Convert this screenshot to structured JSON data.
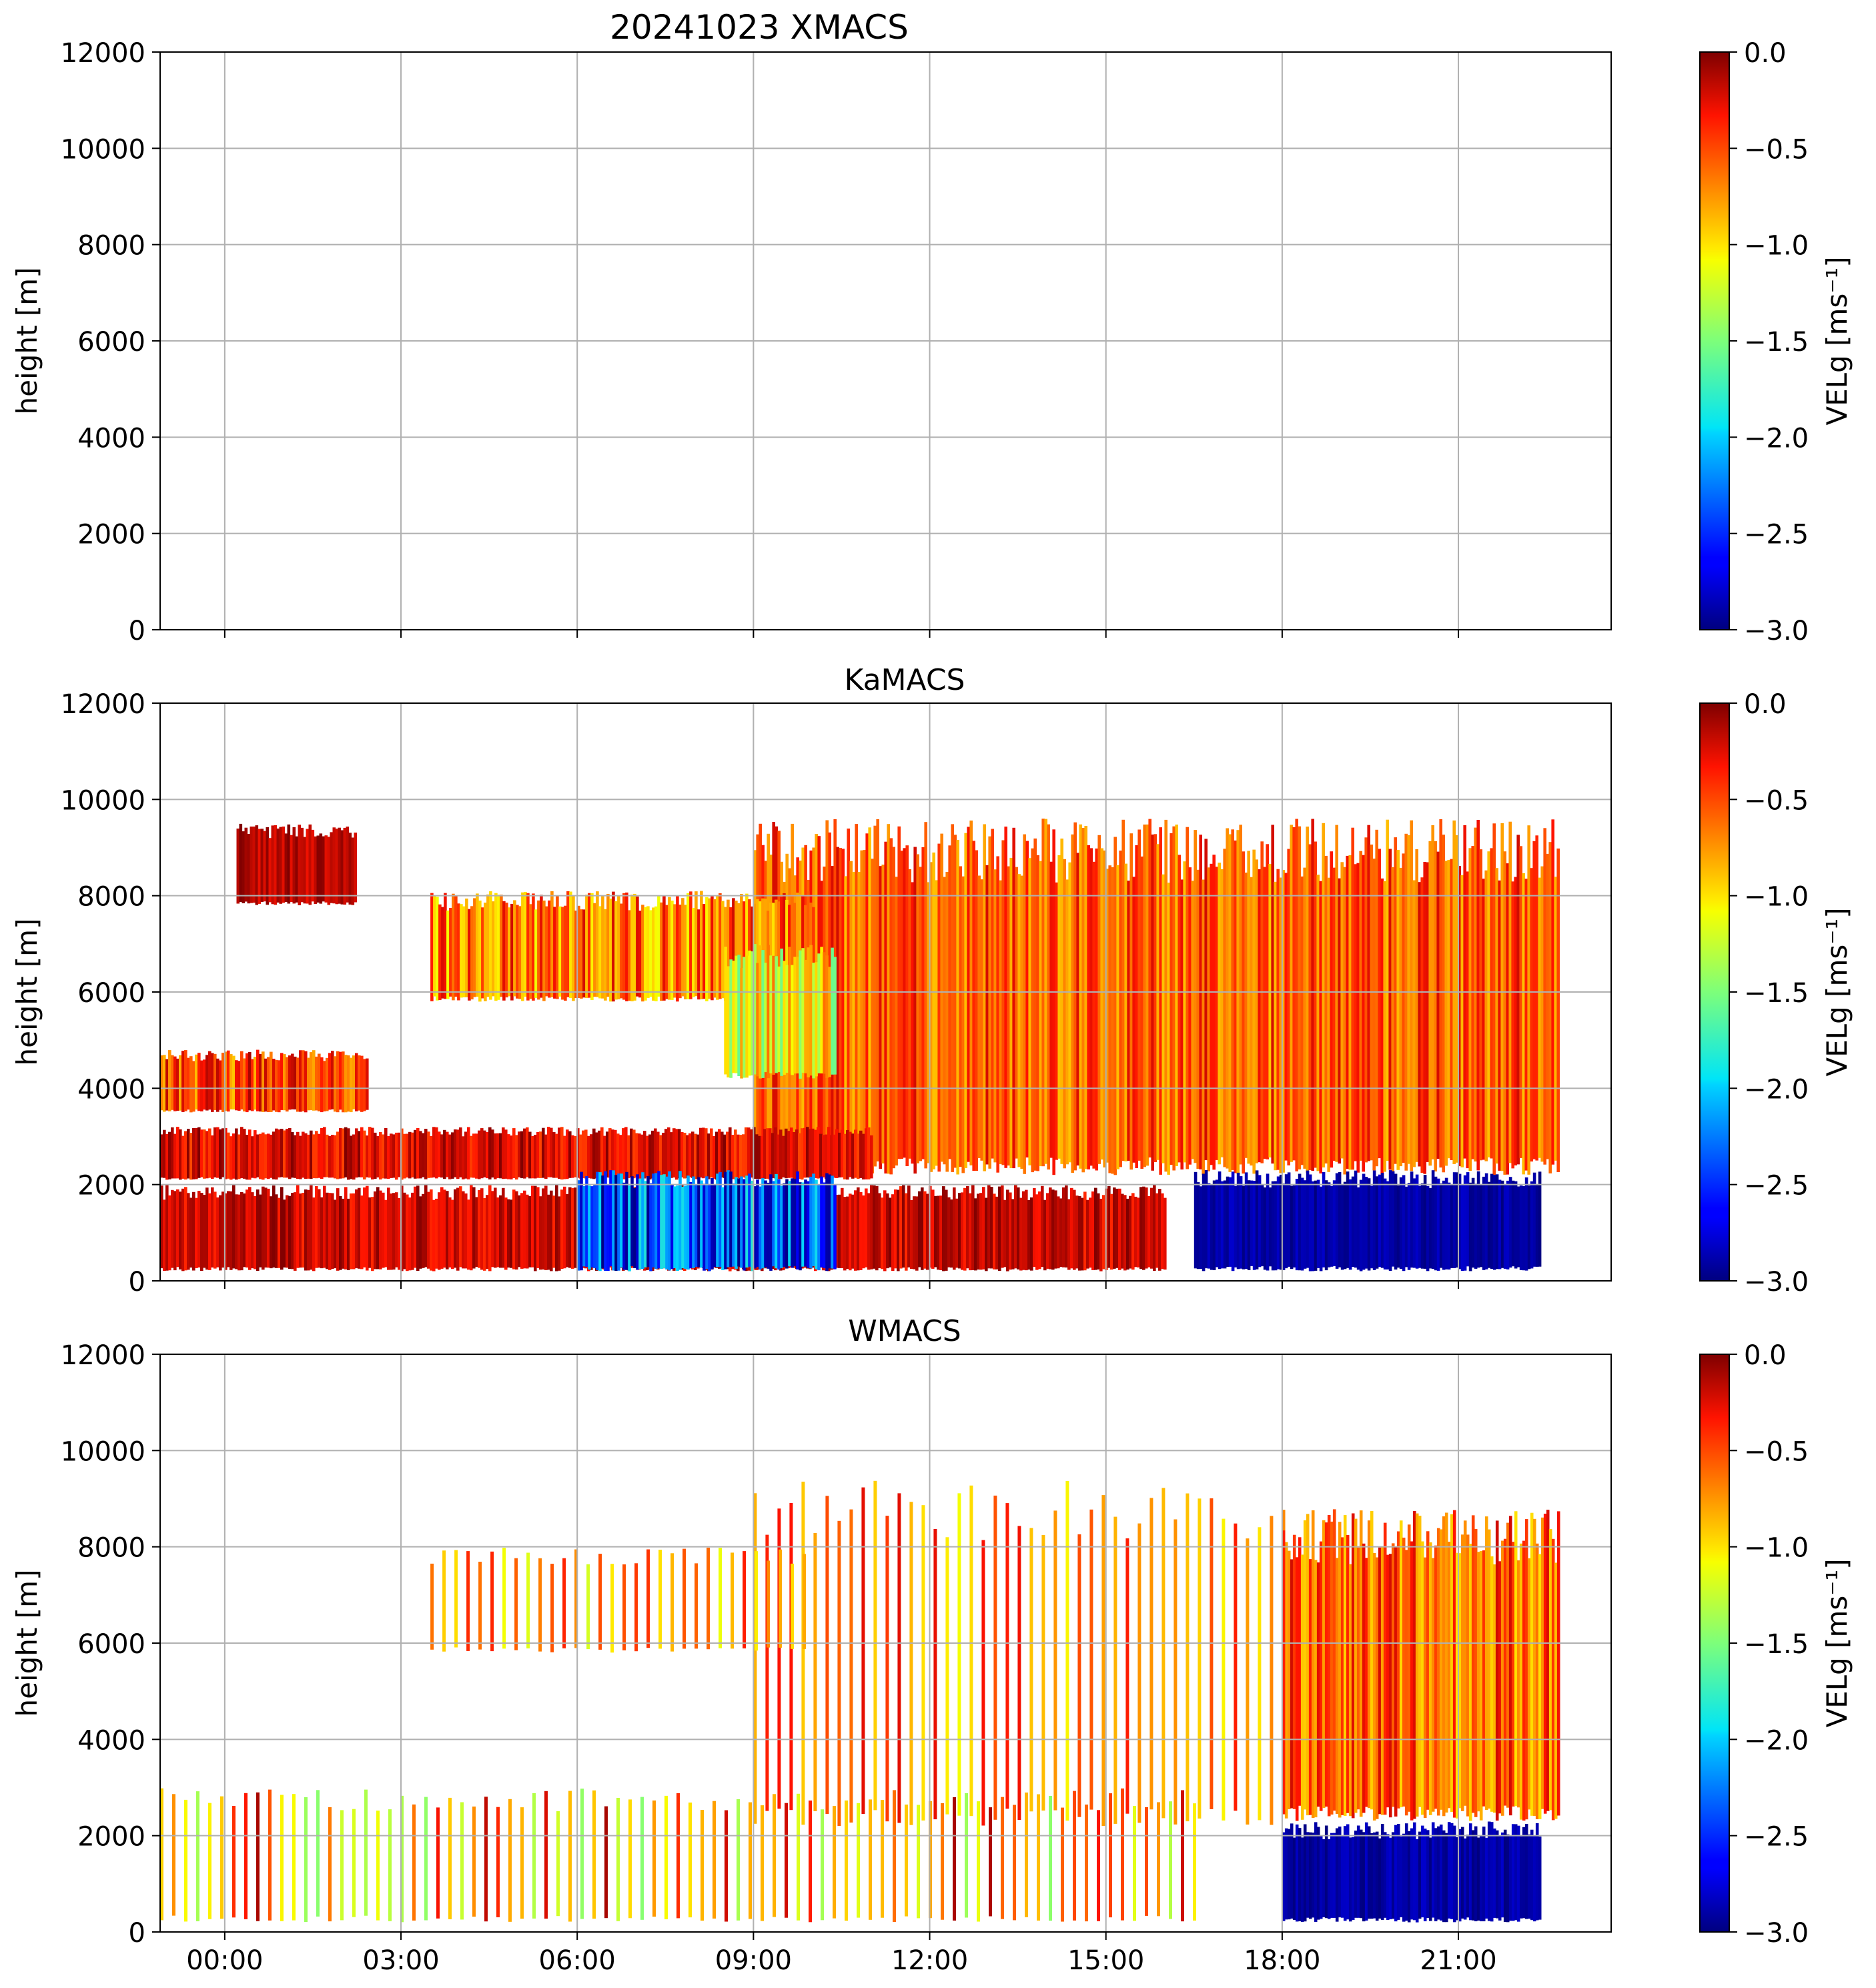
{
  "figure_title": "20241023 XMACS",
  "chart_data": [
    {
      "type": "heatmap",
      "title": "20241023 XMACS",
      "instrument": "XMACS",
      "xlabel": "",
      "ylabel": "height [m]",
      "ylim": [
        0,
        12000
      ],
      "yticks": [
        0,
        2000,
        4000,
        6000,
        8000,
        10000,
        12000
      ],
      "xlim_hours": [
        -1.1,
        23.6
      ],
      "xticks_hours": [
        0,
        3,
        6,
        9,
        12,
        15,
        18,
        21
      ],
      "xtick_labels": [],
      "grid": true,
      "colorbar": {
        "label": "VELg [ms⁻¹]",
        "range": [
          -3.0,
          0.0
        ],
        "ticks": [
          "0.0",
          "−0.5",
          "−1.0",
          "−1.5",
          "−2.0",
          "−2.5",
          "−3.0"
        ]
      },
      "regions": []
    },
    {
      "type": "heatmap",
      "title": "KaMACS",
      "instrument": "KaMACS",
      "xlabel": "",
      "ylabel": "height [m]",
      "ylim": [
        0,
        12000
      ],
      "yticks": [
        0,
        2000,
        4000,
        6000,
        8000,
        10000,
        12000
      ],
      "xlim_hours": [
        -1.1,
        23.6
      ],
      "xticks_hours": [
        0,
        3,
        6,
        9,
        12,
        15,
        18,
        21
      ],
      "xtick_labels": [],
      "grid": true,
      "colorbar": {
        "label": "VELg [ms⁻¹]",
        "range": [
          -3.0,
          0.0
        ],
        "ticks": [
          "0.0",
          "−0.5",
          "−1.0",
          "−1.5",
          "−2.0",
          "−2.5",
          "−3.0"
        ]
      },
      "regions": [
        {
          "t0": 9.0,
          "t1": 22.7,
          "z0": 2200,
          "z1": 9600,
          "v_low": -0.9,
          "v_high": -0.2
        },
        {
          "t0": 3.5,
          "t1": 10.0,
          "z0": 5800,
          "z1": 8100,
          "v_low": -1.1,
          "v_high": -0.2
        },
        {
          "t0": 8.5,
          "t1": 10.4,
          "z0": 4200,
          "z1": 7000,
          "v_low": -1.6,
          "v_high": -0.6
        },
        {
          "t0": -1.1,
          "t1": 2.4,
          "z0": 3500,
          "z1": 4800,
          "v_low": -0.9,
          "v_high": -0.1
        },
        {
          "t0": -1.1,
          "t1": 11.0,
          "z0": 2100,
          "z1": 3200,
          "v_low": -0.5,
          "v_high": 0.0
        },
        {
          "t0": -1.1,
          "t1": 16.0,
          "z0": 200,
          "z1": 2000,
          "v_low": -0.4,
          "v_high": 0.0
        },
        {
          "t0": 6.0,
          "t1": 10.4,
          "z0": 200,
          "z1": 2300,
          "v_low": -3.0,
          "v_high": -1.8
        },
        {
          "t0": 16.5,
          "t1": 22.4,
          "z0": 200,
          "z1": 2300,
          "v_low": -3.0,
          "v_high": -2.8
        },
        {
          "t0": 0.2,
          "t1": 2.2,
          "z0": 7800,
          "z1": 9500,
          "v_low": -0.3,
          "v_high": 0.0
        }
      ]
    },
    {
      "type": "heatmap",
      "title": "WMACS",
      "instrument": "WMACS",
      "xlabel": "",
      "ylabel": "height [m]",
      "ylim": [
        0,
        12000
      ],
      "yticks": [
        0,
        2000,
        4000,
        6000,
        8000,
        10000,
        12000
      ],
      "xlim_hours": [
        -1.1,
        23.6
      ],
      "xticks_hours": [
        0,
        3,
        6,
        9,
        12,
        15,
        18,
        21
      ],
      "xtick_labels": [
        "00:00",
        "03:00",
        "06:00",
        "09:00",
        "12:00",
        "15:00",
        "18:00",
        "21:00"
      ],
      "grid": true,
      "colorbar": {
        "label": "VELg [ms⁻¹]",
        "range": [
          -3.0,
          0.0
        ],
        "ticks": [
          "0.0",
          "−0.5",
          "−1.0",
          "−1.5",
          "−2.0",
          "−2.5",
          "−3.0"
        ]
      },
      "regions": [
        {
          "t0": 18.0,
          "t1": 22.7,
          "z0": 2300,
          "z1": 8800,
          "v_low": -1.0,
          "v_high": -0.2
        },
        {
          "t0": 9.0,
          "t1": 18.0,
          "z0": 2200,
          "z1": 9400,
          "v_low": -1.1,
          "v_high": -0.2,
          "striped": true
        },
        {
          "t0": 3.5,
          "t1": 10.0,
          "z0": 5800,
          "z1": 8000,
          "v_low": -1.2,
          "v_high": -0.3,
          "striped": true
        },
        {
          "t0": -1.1,
          "t1": 16.5,
          "z0": 200,
          "z1": 3000,
          "v_low": -1.5,
          "v_high": -0.1,
          "striped": true
        },
        {
          "t0": 18.0,
          "t1": 22.4,
          "z0": 200,
          "z1": 2300,
          "v_low": -3.0,
          "v_high": -2.8
        }
      ]
    }
  ]
}
